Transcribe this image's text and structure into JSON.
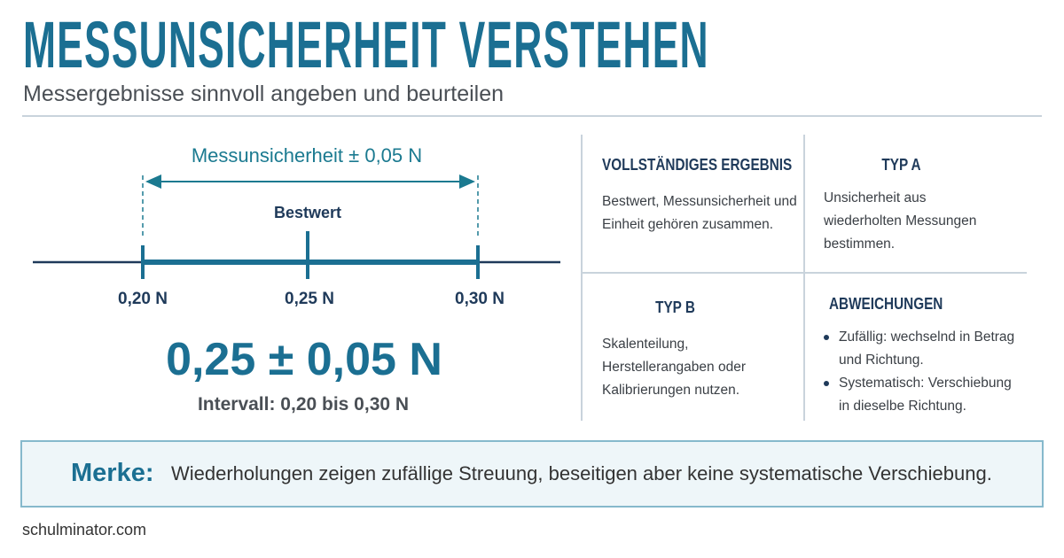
{
  "header": {
    "title": "MESSUNSICHERHEIT VERSTEHEN",
    "subtitle": "Messergebnisse sinnvoll angeben und beurteilen"
  },
  "diagram": {
    "span_label": "Messunsicherheit ± 0,05 N",
    "center_label": "Bestwert",
    "ticks": [
      "0,20 N",
      "0,25 N",
      "0,30 N"
    ],
    "result": "0,25 ± 0,05 N",
    "interval": "Intervall: 0,20 bis 0,30 N"
  },
  "cards": [
    {
      "title": "VOLLSTÄNDIGES ERGEBNIS",
      "text": "Bestwert, Messunsicherheit und Einheit gehören zusammen."
    },
    {
      "title": "TYP A",
      "text": "Unsicherheit aus wiederholten Messungen bestimmen."
    },
    {
      "title": "TYP B",
      "text": "Skalenteilung, Herstellerangaben oder Kalibrierungen nutzen."
    },
    {
      "title": "ABWEICHUNGEN",
      "items": [
        "Zufällig: wechselnd in Betrag und Richtung.",
        "Systematisch: Verschiebung in dieselbe Richtung."
      ]
    }
  ],
  "note": {
    "label": "Merke:",
    "text": "Wiederholungen zeigen zufällige Streuung, beseitigen aber keine systematische Verschiebung."
  },
  "footer": "schulminator.com"
}
